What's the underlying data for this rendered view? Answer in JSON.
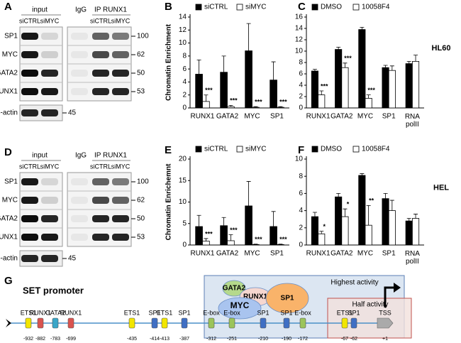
{
  "chart_data": [
    {
      "type": "bar",
      "panel": "B",
      "ylabel": "Chromatin Enrichment",
      "categories": [
        "RUNX1",
        "GATA2",
        "MYC",
        "SP1"
      ],
      "series": [
        {
          "name": "siCTRL",
          "color": "#000000",
          "values": [
            5.2,
            5.5,
            8.8,
            4.3
          ],
          "errors": [
            2.2,
            2.5,
            4.2,
            2.8
          ]
        },
        {
          "name": "siMYC",
          "color": "#ffffff",
          "values": [
            1.0,
            0.2,
            0.1,
            0.1
          ],
          "errors": [
            1.0,
            0.2,
            0.1,
            0.1
          ]
        }
      ],
      "significance": [
        "***",
        "***",
        "***",
        "***"
      ],
      "ylim": [
        0,
        14
      ],
      "yticks": [
        0,
        2,
        4,
        6,
        8,
        10,
        12,
        14
      ]
    },
    {
      "type": "bar",
      "panel": "C",
      "side_label": "HL60",
      "categories": [
        "RUNX1",
        "GATA2",
        "MYC",
        "SP1",
        "RNA polII"
      ],
      "series": [
        {
          "name": "DMSO",
          "color": "#000000",
          "values": [
            6.5,
            10.3,
            13.8,
            7.1,
            7.8
          ],
          "errors": [
            0.3,
            0.4,
            0.4,
            0.4,
            0.4
          ]
        },
        {
          "name": "10058F4",
          "color": "#ffffff",
          "values": [
            2.3,
            7.1,
            1.7,
            6.6,
            8.2
          ],
          "errors": [
            0.7,
            0.8,
            0.6,
            0.8,
            1.1
          ]
        }
      ],
      "significance": [
        "***",
        "***",
        "***",
        null,
        null
      ],
      "ylim": [
        0,
        16
      ],
      "yticks": [
        0,
        2,
        4,
        6,
        8,
        10,
        12,
        14,
        16
      ]
    },
    {
      "type": "bar",
      "panel": "E",
      "ylabel": "Chromatin Enrichemnt",
      "categories": [
        "RUNX1",
        "GATA2",
        "MYC",
        "SP1"
      ],
      "series": [
        {
          "name": "siCTRL",
          "color": "#000000",
          "values": [
            4.3,
            4.5,
            9.1,
            4.3
          ],
          "errors": [
            2.6,
            1.9,
            5.7,
            3.5
          ]
        },
        {
          "name": "siMYC",
          "color": "#ffffff",
          "values": [
            0.9,
            1.0,
            0.1,
            0.1
          ],
          "errors": [
            0.6,
            1.4,
            0.1,
            0.1
          ]
        }
      ],
      "significance": [
        "***",
        "***",
        "***",
        "***"
      ],
      "ylim": [
        0,
        20
      ],
      "yticks": [
        0,
        5,
        10,
        15,
        20
      ]
    },
    {
      "type": "bar",
      "panel": "F",
      "side_label": "HEL",
      "categories": [
        "RUNX1",
        "GATA2",
        "MYC",
        "SP1",
        "RNA polII"
      ],
      "series": [
        {
          "name": "DMSO",
          "color": "#000000",
          "values": [
            3.3,
            5.6,
            8.1,
            5.4,
            2.8
          ],
          "errors": [
            0.5,
            0.4,
            0.2,
            0.6,
            0.3
          ]
        },
        {
          "name": "10058F4",
          "color": "#ffffff",
          "values": [
            1.3,
            3.3,
            2.3,
            4.0,
            3.1
          ],
          "errors": [
            0.3,
            0.9,
            2.3,
            1.2,
            0.5
          ]
        }
      ],
      "significance": [
        "*",
        "*",
        "**",
        null,
        null
      ],
      "ylim": [
        0,
        10
      ],
      "yticks": [
        0,
        2,
        4,
        6,
        8,
        10
      ]
    }
  ],
  "blots": [
    {
      "panel": "A",
      "headers": [
        "input",
        "IgG",
        "IP RUNX1"
      ],
      "lanes": [
        "siCTRL",
        "siMYC",
        "siCTRL",
        "siMYC"
      ],
      "rows": [
        {
          "protein": "SP1",
          "mw": 100
        },
        {
          "protein": "MYC",
          "mw": 62
        },
        {
          "protein": "GATA2",
          "mw": 50
        },
        {
          "protein": "RUNX1",
          "mw": 53
        }
      ],
      "loading": {
        "protein": "β-actin",
        "mw": 45
      }
    },
    {
      "panel": "D",
      "headers": [
        "input",
        "IgG",
        "IP RUNX1"
      ],
      "lanes": [
        "siCTRL",
        "siMYC",
        "siCTRL",
        "siMYC"
      ],
      "rows": [
        {
          "protein": "SP1",
          "mw": 100
        },
        {
          "protein": "MYC",
          "mw": 62
        },
        {
          "protein": "GATA2",
          "mw": 50
        },
        {
          "protein": "RUNX1",
          "mw": 53
        }
      ],
      "loading": {
        "protein": "β-actin",
        "mw": 45
      }
    }
  ],
  "promoter": {
    "panel": "G",
    "title": "SET promoter",
    "highest_label": "Highest activity",
    "half_label": "Half activity",
    "tss": "TSS",
    "tss_position": "+1",
    "complex": [
      {
        "name": "GATA2",
        "color": "#b5d98c"
      },
      {
        "name": "RUNX1",
        "color": "#f6d7d0"
      },
      {
        "name": "MYC",
        "color": "#a9c4ef"
      },
      {
        "name": "SP1",
        "color": "#f9b36a"
      }
    ],
    "elements": [
      {
        "name": "ETS1",
        "position": "-932",
        "color": "#f2e600"
      },
      {
        "name": "RUNX1",
        "position": "-882",
        "color": "#d9534f"
      },
      {
        "name": "GATA2",
        "position": "-783",
        "color": "#3aa6c8"
      },
      {
        "name": "RUNX1",
        "position": "-699",
        "color": "#d9534f"
      },
      {
        "name": "ETS1",
        "position": "-435",
        "color": "#f2e600"
      },
      {
        "name": "SP1",
        "position": "-414",
        "color": "#3f6fc4"
      },
      {
        "name": "ETS1",
        "position": "-413",
        "color": "#f2e600"
      },
      {
        "name": "SP1",
        "position": "-387",
        "color": "#3f6fc4"
      },
      {
        "name": "E-box",
        "position": "-312",
        "color": "#9bc45a"
      },
      {
        "name": "E-box",
        "position": "-251",
        "color": "#9bc45a"
      },
      {
        "name": "SP1",
        "position": "-210",
        "color": "#3f6fc4"
      },
      {
        "name": "SP1",
        "position": "-190",
        "color": "#3f6fc4"
      },
      {
        "name": "E-box",
        "position": "-172",
        "color": "#9bc45a"
      },
      {
        "name": "ETS1",
        "position": "-67",
        "color": "#f2e600"
      },
      {
        "name": "SP1",
        "position": "-62",
        "color": "#3f6fc4"
      }
    ]
  }
}
